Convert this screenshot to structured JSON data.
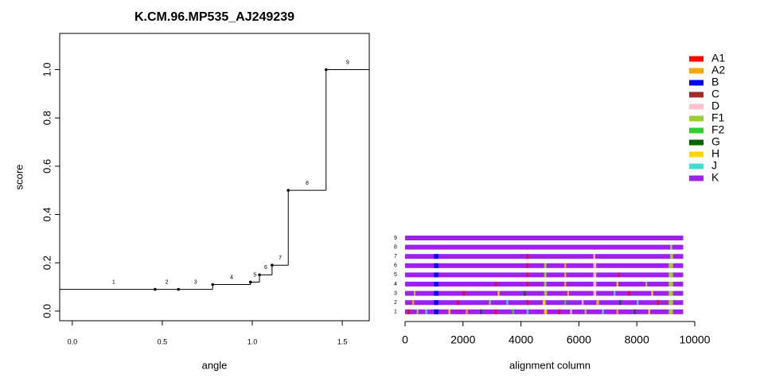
{
  "chart_data": [
    {
      "type": "step",
      "title": "K.CM.96.MP535_AJ249239",
      "xlabel": "angle",
      "ylabel": "score",
      "x": [
        0,
        0.46,
        0.59,
        0.78,
        0.99,
        1.04,
        1.11,
        1.2,
        1.41
      ],
      "values": [
        0.09,
        0.09,
        0.09,
        0.11,
        0.12,
        0.15,
        0.19,
        0.5,
        1.0
      ],
      "point_labels": [
        "1",
        "2",
        "3",
        "4",
        "5",
        "6",
        "7",
        "8",
        "9"
      ],
      "color": "#000000",
      "xlim": [
        -0.07,
        1.65
      ],
      "ylim": [
        -0.04,
        1.15
      ],
      "xticks": [
        {
          "value": 0,
          "label": "0.0"
        },
        {
          "value": 0.5,
          "label": "0.5"
        },
        {
          "value": 1,
          "label": "1.0"
        },
        {
          "value": 1.5,
          "label": "1.5"
        }
      ],
      "yticks": [
        {
          "value": 0,
          "label": "0.0"
        },
        {
          "value": 0.2,
          "label": "0.2"
        },
        {
          "value": 0.4,
          "label": "0.4"
        },
        {
          "value": 0.6,
          "label": "0.6"
        },
        {
          "value": 0.8,
          "label": "0.8"
        },
        {
          "value": 1,
          "label": "1.0"
        }
      ]
    },
    {
      "type": "alignment",
      "xlabel": "alignment column",
      "xlim": [
        0,
        10000
      ],
      "xticks": [
        0,
        2000,
        4000,
        6000,
        8000,
        10000
      ],
      "legend": [
        {
          "name": "A1",
          "color": "#ff0000"
        },
        {
          "name": "A2",
          "color": "#ffa500"
        },
        {
          "name": "B",
          "color": "#0000ff"
        },
        {
          "name": "C",
          "color": "#a52a2a"
        },
        {
          "name": "D",
          "color": "#ffc0cb"
        },
        {
          "name": "F1",
          "color": "#9acd32"
        },
        {
          "name": "F2",
          "color": "#32cd32"
        },
        {
          "name": "G",
          "color": "#006400"
        },
        {
          "name": "H",
          "color": "#ffd700"
        },
        {
          "name": "J",
          "color": "#40e0d0"
        },
        {
          "name": "K",
          "color": "#a020f0"
        }
      ],
      "base_subtype": "K",
      "rows": [
        {
          "label": "1",
          "length": 9600,
          "segments": [
            {
              "from": 100,
              "to": 160,
              "subtype": "A1"
            },
            {
              "from": 400,
              "to": 460,
              "subtype": "F1"
            },
            {
              "from": 700,
              "to": 760,
              "subtype": "J"
            },
            {
              "from": 1000,
              "to": 1150,
              "subtype": "B"
            },
            {
              "from": 1500,
              "to": 1560,
              "subtype": "H"
            },
            {
              "from": 2100,
              "to": 2160,
              "subtype": "A2"
            },
            {
              "from": 2600,
              "to": 2650,
              "subtype": "G"
            },
            {
              "from": 3100,
              "to": 3160,
              "subtype": "A1"
            },
            {
              "from": 3700,
              "to": 3760,
              "subtype": "F2"
            },
            {
              "from": 4200,
              "to": 4260,
              "subtype": "J"
            },
            {
              "from": 4800,
              "to": 4900,
              "subtype": "H"
            },
            {
              "from": 5300,
              "to": 5360,
              "subtype": "A1"
            },
            {
              "from": 5700,
              "to": 5760,
              "subtype": "D"
            },
            {
              "from": 6200,
              "to": 6260,
              "subtype": "F1"
            },
            {
              "from": 6800,
              "to": 6860,
              "subtype": "J"
            },
            {
              "from": 7300,
              "to": 7360,
              "subtype": "A2"
            },
            {
              "from": 7900,
              "to": 7960,
              "subtype": "G"
            },
            {
              "from": 8400,
              "to": 8460,
              "subtype": "H"
            },
            {
              "from": 9100,
              "to": 9250,
              "subtype": "F1"
            }
          ]
        },
        {
          "label": "2",
          "length": 9600,
          "segments": [
            {
              "from": 250,
              "to": 310,
              "subtype": "A2"
            },
            {
              "from": 1000,
              "to": 1150,
              "subtype": "B"
            },
            {
              "from": 1800,
              "to": 1860,
              "subtype": "A1"
            },
            {
              "from": 2900,
              "to": 2960,
              "subtype": "F1"
            },
            {
              "from": 3500,
              "to": 3560,
              "subtype": "J"
            },
            {
              "from": 4200,
              "to": 4260,
              "subtype": "A1"
            },
            {
              "from": 4750,
              "to": 4850,
              "subtype": "H"
            },
            {
              "from": 5500,
              "to": 5560,
              "subtype": "F2"
            },
            {
              "from": 6100,
              "to": 6160,
              "subtype": "D"
            },
            {
              "from": 6600,
              "to": 6700,
              "subtype": "A2"
            },
            {
              "from": 7400,
              "to": 7460,
              "subtype": "G"
            },
            {
              "from": 8000,
              "to": 8060,
              "subtype": "J"
            },
            {
              "from": 8700,
              "to": 8760,
              "subtype": "A1"
            },
            {
              "from": 9100,
              "to": 9250,
              "subtype": "F1"
            }
          ]
        },
        {
          "label": "3",
          "length": 9600,
          "segments": [
            {
              "from": 300,
              "to": 360,
              "subtype": "F1"
            },
            {
              "from": 1000,
              "to": 1150,
              "subtype": "B"
            },
            {
              "from": 2000,
              "to": 2060,
              "subtype": "A1"
            },
            {
              "from": 3200,
              "to": 3260,
              "subtype": "H"
            },
            {
              "from": 4100,
              "to": 4160,
              "subtype": "G"
            },
            {
              "from": 4800,
              "to": 4900,
              "subtype": "F1"
            },
            {
              "from": 5600,
              "to": 5660,
              "subtype": "A2"
            },
            {
              "from": 6500,
              "to": 6600,
              "subtype": "D"
            },
            {
              "from": 7200,
              "to": 7260,
              "subtype": "J"
            },
            {
              "from": 7700,
              "to": 7760,
              "subtype": "A1"
            },
            {
              "from": 8500,
              "to": 8560,
              "subtype": "H"
            },
            {
              "from": 9100,
              "to": 9250,
              "subtype": "F1"
            }
          ]
        },
        {
          "label": "4",
          "length": 9600,
          "segments": [
            {
              "from": 1000,
              "to": 1150,
              "subtype": "B"
            },
            {
              "from": 3100,
              "to": 3150,
              "subtype": "A1"
            },
            {
              "from": 4200,
              "to": 4250,
              "subtype": "A1"
            },
            {
              "from": 4800,
              "to": 4880,
              "subtype": "F1"
            },
            {
              "from": 5500,
              "to": 5560,
              "subtype": "A2"
            },
            {
              "from": 6500,
              "to": 6600,
              "subtype": "D"
            },
            {
              "from": 7300,
              "to": 7360,
              "subtype": "H"
            },
            {
              "from": 8300,
              "to": 8360,
              "subtype": "F1"
            },
            {
              "from": 9100,
              "to": 9250,
              "subtype": "F1"
            }
          ]
        },
        {
          "label": "5",
          "length": 9600,
          "segments": [
            {
              "from": 1000,
              "to": 1150,
              "subtype": "B"
            },
            {
              "from": 4200,
              "to": 4250,
              "subtype": "A1"
            },
            {
              "from": 4800,
              "to": 4880,
              "subtype": "F1"
            },
            {
              "from": 5500,
              "to": 5560,
              "subtype": "A2"
            },
            {
              "from": 6500,
              "to": 6600,
              "subtype": "D"
            },
            {
              "from": 7350,
              "to": 7400,
              "subtype": "A1"
            },
            {
              "from": 9100,
              "to": 9250,
              "subtype": "F1"
            }
          ]
        },
        {
          "label": "6",
          "length": 9600,
          "segments": [
            {
              "from": 1000,
              "to": 1150,
              "subtype": "B"
            },
            {
              "from": 4200,
              "to": 4250,
              "subtype": "A1"
            },
            {
              "from": 4800,
              "to": 4880,
              "subtype": "F1"
            },
            {
              "from": 5500,
              "to": 5560,
              "subtype": "A2"
            },
            {
              "from": 6500,
              "to": 6600,
              "subtype": "D"
            },
            {
              "from": 9100,
              "to": 9250,
              "subtype": "F1"
            }
          ]
        },
        {
          "label": "7",
          "length": 9600,
          "segments": [
            {
              "from": 1000,
              "to": 1150,
              "subtype": "B"
            },
            {
              "from": 4200,
              "to": 4250,
              "subtype": "A1"
            },
            {
              "from": 6500,
              "to": 6560,
              "subtype": "D"
            },
            {
              "from": 9150,
              "to": 9250,
              "subtype": "F1"
            }
          ]
        },
        {
          "label": "8",
          "length": 9600,
          "segments": [
            {
              "from": 9150,
              "to": 9220,
              "subtype": "F1"
            }
          ]
        },
        {
          "label": "9",
          "length": 9600,
          "segments": []
        }
      ]
    }
  ]
}
